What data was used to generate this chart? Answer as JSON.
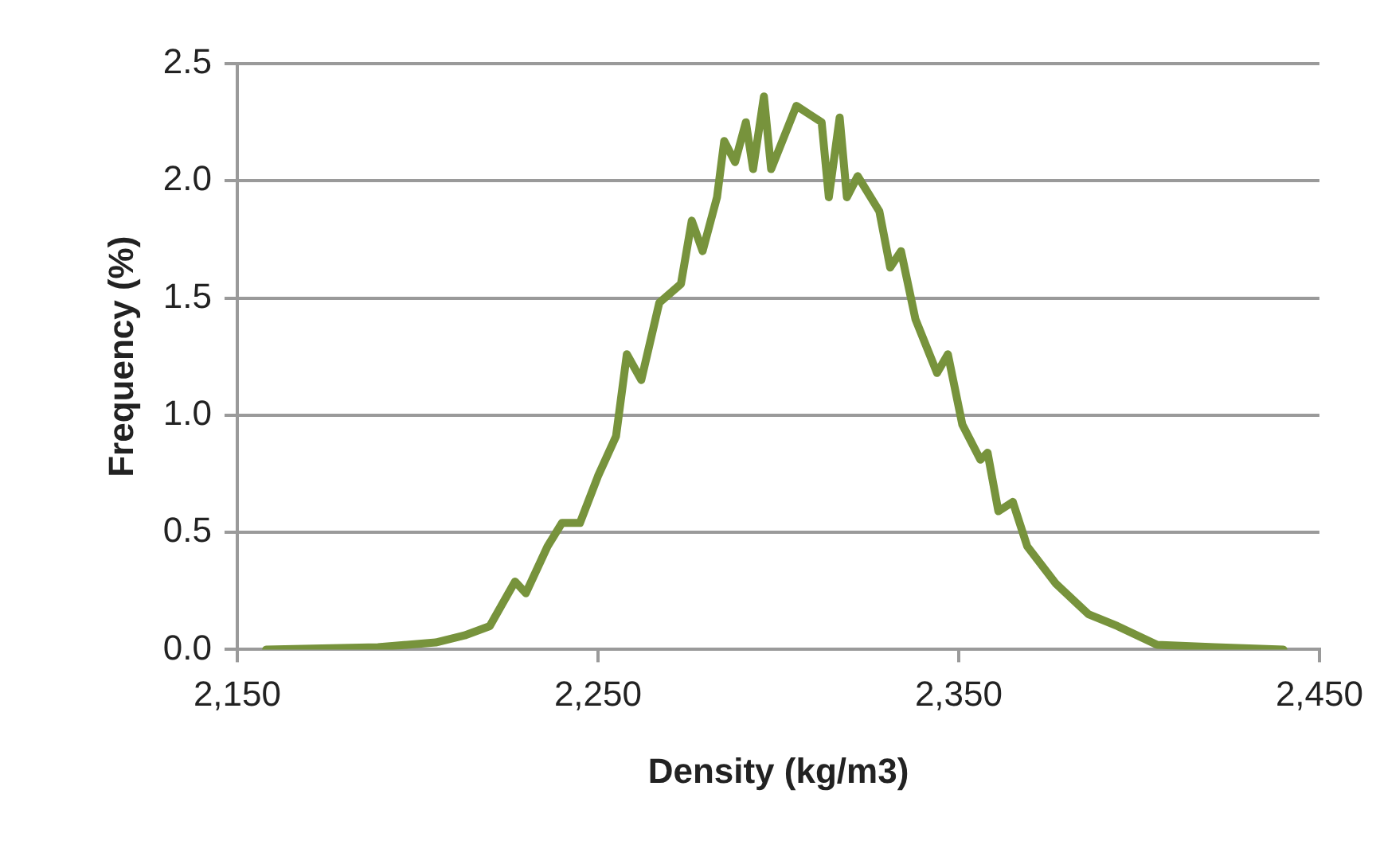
{
  "chart_data": {
    "type": "line",
    "xlabel": "Density (kg/m3)",
    "ylabel": "Frequency (%)",
    "x": [
      2158,
      2189,
      2205,
      2213,
      2220,
      2227,
      2230,
      2236,
      2240,
      2245,
      2250,
      2255,
      2258,
      2262,
      2267,
      2273,
      2276,
      2279,
      2283,
      2285,
      2288,
      2291,
      2293,
      2296,
      2298,
      2305,
      2312,
      2314,
      2317,
      2319,
      2322,
      2328,
      2331,
      2334,
      2338,
      2344,
      2347,
      2351,
      2356,
      2358,
      2361,
      2365,
      2369,
      2377,
      2386,
      2394,
      2405,
      2421,
      2440
    ],
    "series": [
      {
        "color": "#77933c",
        "values": [
          0,
          0.01,
          0.03,
          0.06,
          0.1,
          0.29,
          0.24,
          0.44,
          0.54,
          0.54,
          0.74,
          0.91,
          1.26,
          1.15,
          1.48,
          1.56,
          1.83,
          1.7,
          1.93,
          2.17,
          2.08,
          2.25,
          2.05,
          2.36,
          2.05,
          2.32,
          2.25,
          1.93,
          2.27,
          1.93,
          2.02,
          1.87,
          1.63,
          1.7,
          1.41,
          1.18,
          1.26,
          0.96,
          0.81,
          0.84,
          0.59,
          0.63,
          0.44,
          0.28,
          0.15,
          0.1,
          0.02,
          0.01,
          0
        ]
      }
    ],
    "xlim": [
      2150,
      2450
    ],
    "xticks": [
      {
        "value": 2150,
        "label": "2,150"
      },
      {
        "value": 2250,
        "label": "2,250"
      },
      {
        "value": 2350,
        "label": "2,350"
      },
      {
        "value": 2450,
        "label": "2,450"
      }
    ],
    "ylim": [
      0,
      2.5
    ],
    "yticks": [
      {
        "value": 0,
        "label": "0.0"
      },
      {
        "value": 0.5,
        "label": "0.5"
      },
      {
        "value": 1,
        "label": "1.0"
      },
      {
        "value": 1.5,
        "label": "1.5"
      },
      {
        "value": 2,
        "label": "2.0"
      },
      {
        "value": 2.5,
        "label": "2.5"
      }
    ],
    "grid": "y",
    "legend": false,
    "marker": "none",
    "line_style": "solid"
  }
}
